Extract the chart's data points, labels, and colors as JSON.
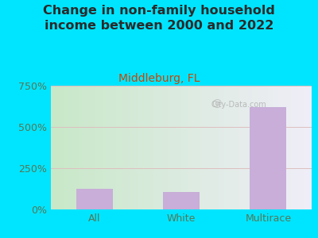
{
  "title": "Change in non-family household\nincome between 2000 and 2022",
  "subtitle": "Middleburg, FL",
  "categories": [
    "All",
    "White",
    "Multirace"
  ],
  "values": [
    125,
    105,
    620
  ],
  "bar_color": "#c8aed8",
  "title_color": "#2a2a2a",
  "subtitle_color": "#cc4400",
  "tick_color": "#557755",
  "background_outer": "#00e5ff",
  "background_inner": "#d8edd8",
  "ylim": [
    0,
    750
  ],
  "yticks": [
    0,
    250,
    500,
    750
  ],
  "ytick_labels": [
    "0%",
    "250%",
    "500%",
    "750%"
  ],
  "watermark": "City-Data.com",
  "grid_color": "#ddbfbf",
  "title_fontsize": 11.5,
  "subtitle_fontsize": 10,
  "tick_fontsize": 9
}
